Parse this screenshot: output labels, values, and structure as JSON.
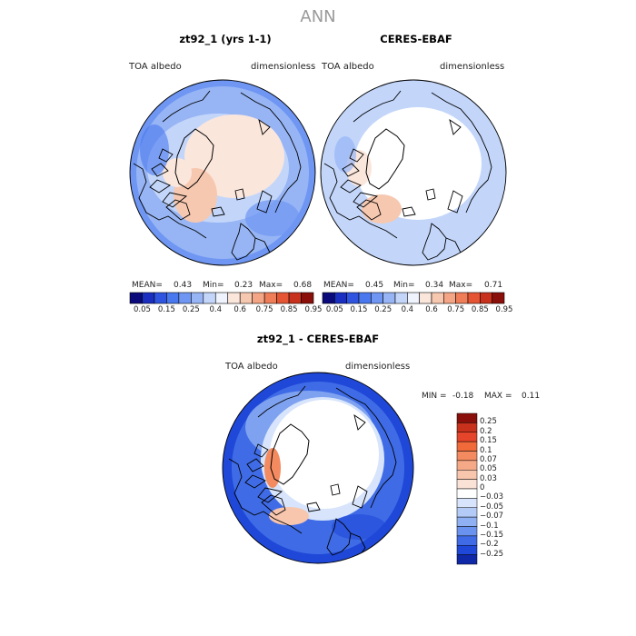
{
  "title": "ANN",
  "panels": [
    {
      "name": "zt92_1 (yrs 1-1)",
      "var_label": "TOA albedo",
      "units": "dimensionless",
      "stats": {
        "mean_label": "MEAN=",
        "mean": "0.43",
        "min_label": "Min=",
        "min": "0.23",
        "max_label": "Max=",
        "max": "0.68"
      }
    },
    {
      "name": "CERES-EBAF",
      "var_label": "TOA albedo",
      "units": "dimensionless",
      "stats": {
        "mean_label": "MEAN=",
        "mean": "0.45",
        "min_label": "Min=",
        "min": "0.34",
        "max_label": "Max=",
        "max": "0.71"
      }
    }
  ],
  "abs_colorbar": {
    "ticks": [
      "0.05",
      "0.15",
      "0.25",
      "0.4",
      "0.6",
      "0.75",
      "0.85",
      "0.95"
    ],
    "colors": [
      "#0a0a7a",
      "#1a2fc0",
      "#2f55e0",
      "#4a78ee",
      "#6e96f2",
      "#97b5f5",
      "#c3d6fa",
      "#eef3fd",
      "#fbe6dc",
      "#f7c8b0",
      "#f3a585",
      "#ee7d58",
      "#e55533",
      "#c8321c",
      "#8a0f0a"
    ]
  },
  "diff_panel": {
    "name": "zt92_1 - CERES-EBAF",
    "var_label": "TOA albedo",
    "units": "dimensionless",
    "min_label": "MIN =",
    "min": "-0.18",
    "max_label": "MAX =",
    "max": "0.11"
  },
  "diff_colorbar": {
    "ticks": [
      "0.25",
      "0.2",
      "0.15",
      "0.1",
      "0.07",
      "0.05",
      "0.03",
      "0",
      "−0.03",
      "−0.05",
      "−0.07",
      "−0.1",
      "−0.15",
      "−0.2",
      "−0.25"
    ],
    "colors": [
      "#8a0f0a",
      "#c8321c",
      "#e5452a",
      "#f06a3a",
      "#f48a60",
      "#f6a987",
      "#f8c5ad",
      "#fbe2d6",
      "#ffffff",
      "#d7e4fb",
      "#b4cbf7",
      "#8fb0f3",
      "#6a93ef",
      "#3f6ce6",
      "#1f48d8",
      "#0f28a8"
    ]
  }
}
